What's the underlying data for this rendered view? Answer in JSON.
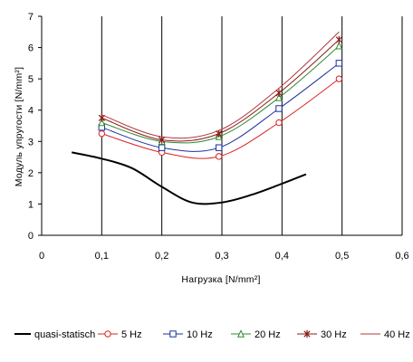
{
  "chart_data": {
    "type": "line",
    "xlabel": "Нагрузка [N/mm²]",
    "ylabel": "Модуль упругости [N/mm²]",
    "xlim": [
      0,
      0.6
    ],
    "ylim": [
      0,
      7
    ],
    "x_ticks": [
      "0",
      "0,1",
      "0,2",
      "0,3",
      "0,4",
      "0,5",
      "0,6"
    ],
    "y_ticks": [
      "0",
      "1",
      "2",
      "3",
      "4",
      "5",
      "6",
      "7"
    ],
    "grid": "vertical",
    "legend": "bottom",
    "series": [
      {
        "name": "quasi-statisch",
        "color": "#000000",
        "marker": "none",
        "width": 2,
        "x": [
          0.05,
          0.1,
          0.15,
          0.2,
          0.25,
          0.3,
          0.35,
          0.4,
          0.44
        ],
        "y": [
          2.65,
          2.45,
          2.15,
          1.55,
          1.05,
          1.05,
          1.3,
          1.65,
          1.95
        ]
      },
      {
        "name": "5 Hz",
        "color": "#dd2222",
        "marker": "circle",
        "width": 1,
        "x": [
          0.1,
          0.2,
          0.295,
          0.395,
          0.495
        ],
        "y": [
          3.25,
          2.65,
          2.52,
          3.6,
          5.0
        ]
      },
      {
        "name": "10 Hz",
        "color": "#1a2f9e",
        "marker": "square",
        "width": 1,
        "x": [
          0.1,
          0.2,
          0.295,
          0.395,
          0.495
        ],
        "y": [
          3.45,
          2.8,
          2.8,
          4.05,
          5.5
        ]
      },
      {
        "name": "20 Hz",
        "color": "#2e8b2e",
        "marker": "triangle",
        "width": 1,
        "x": [
          0.1,
          0.2,
          0.295,
          0.395,
          0.495
        ],
        "y": [
          3.6,
          3.0,
          3.15,
          4.4,
          6.05
        ]
      },
      {
        "name": "30 Hz",
        "color": "#8b1a1a",
        "marker": "x",
        "width": 1,
        "x": [
          0.1,
          0.2,
          0.295,
          0.395,
          0.495
        ],
        "y": [
          3.75,
          3.05,
          3.25,
          4.55,
          6.25
        ]
      },
      {
        "name": "40 Hz",
        "color": "#b03a3a",
        "marker": "none",
        "width": 1,
        "x": [
          0.1,
          0.2,
          0.295,
          0.395,
          0.495
        ],
        "y": [
          3.85,
          3.15,
          3.35,
          4.7,
          6.5
        ]
      }
    ]
  }
}
